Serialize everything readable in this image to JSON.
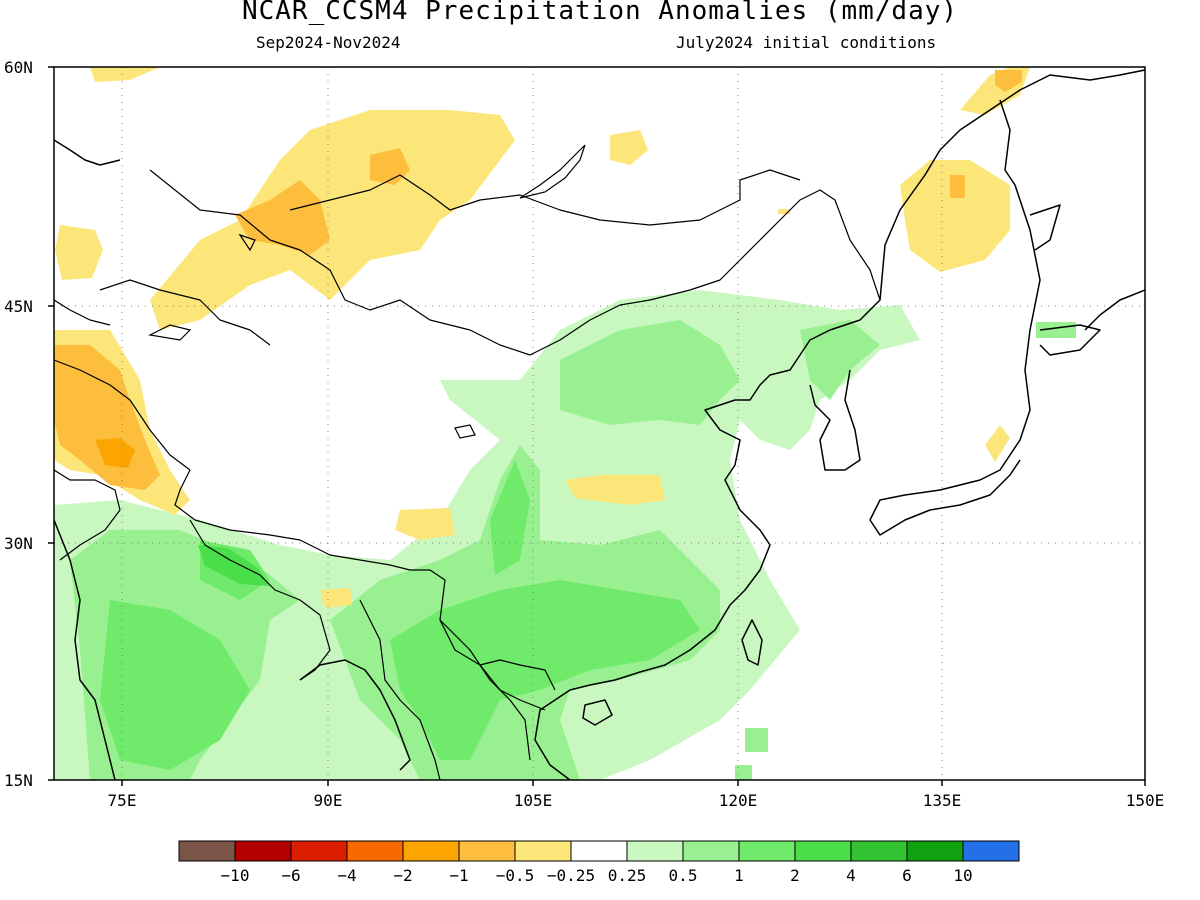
{
  "header": {
    "title": "NCAR_CCSM4 Precipitation Anomalies (mm/day)",
    "subtitle_left": "Sep2024-Nov2024",
    "subtitle_right": "July2024 initial conditions"
  },
  "axes": {
    "lat_labels": [
      "60N",
      "45N",
      "30N",
      "15N"
    ],
    "lon_labels": [
      "75E",
      "90E",
      "105E",
      "120E",
      "135E",
      "150E"
    ],
    "lat_range": [
      15,
      60
    ],
    "lon_range": [
      70,
      150
    ]
  },
  "colorbar": {
    "labels": [
      "−10",
      "−6",
      "−4",
      "−2",
      "−1",
      "−0.5",
      "−0.25",
      "0.25",
      "0.5",
      "1",
      "2",
      "4",
      "6",
      "10"
    ],
    "colors": [
      "#7b5648",
      "#b40000",
      "#dc1e00",
      "#f86a00",
      "#fca400",
      "#fcbe3c",
      "#fce67a",
      "#ffffff",
      "#c8f8c0",
      "#98f090",
      "#70ea6a",
      "#4ade4a",
      "#32c232",
      "#10a010",
      "#2470e8"
    ]
  },
  "chart_data": {
    "type": "heatmap",
    "title": "NCAR_CCSM4 Precipitation Anomalies (mm/day)",
    "period": "Sep2024-Nov2024",
    "initial_conditions": "July2024 initial conditions",
    "levels": [
      -10,
      -6,
      -4,
      -2,
      -1,
      -0.5,
      -0.25,
      0.25,
      0.5,
      1,
      2,
      4,
      6,
      10
    ],
    "grid": true
  }
}
